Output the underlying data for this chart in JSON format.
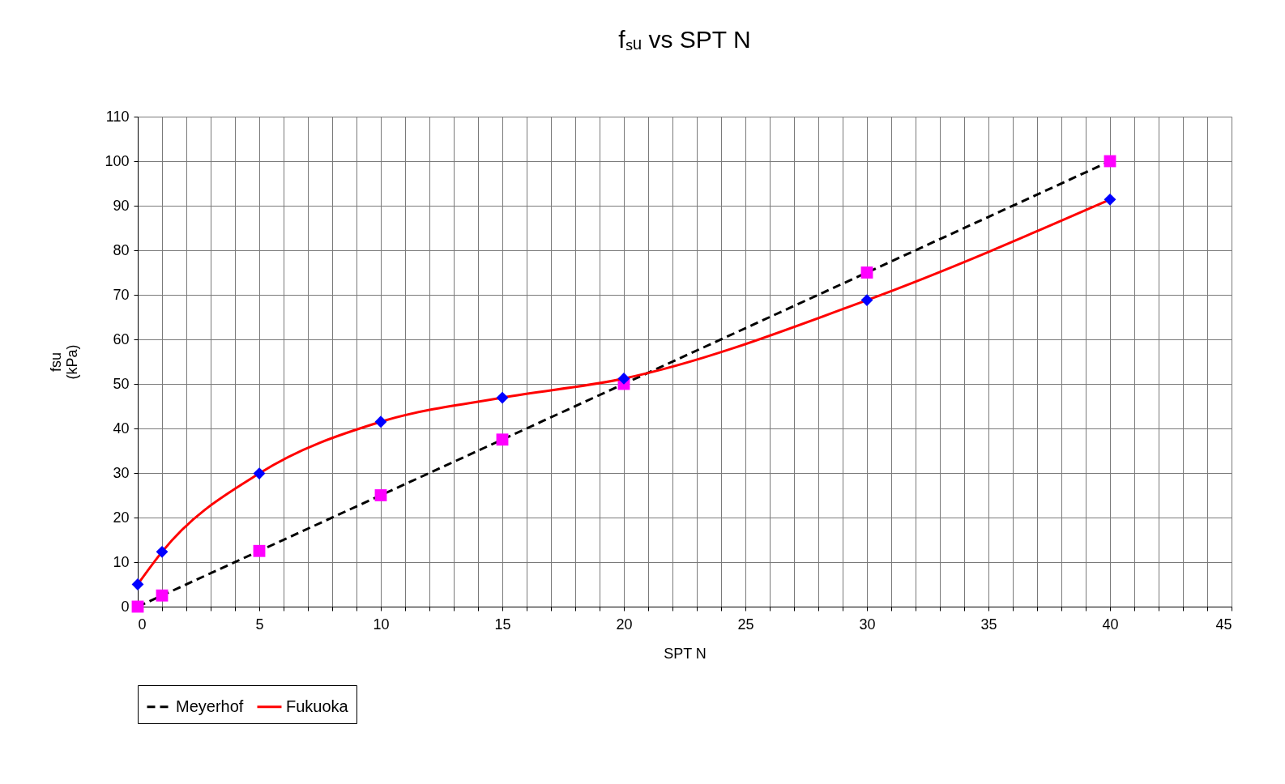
{
  "chart_data": {
    "type": "line",
    "title": "fₛᵤ vs SPT N",
    "xlabel": "SPT N",
    "ylabel": "fsu\n(kPa)",
    "x": [
      0,
      1,
      5,
      10,
      15,
      20,
      30,
      40
    ],
    "series": [
      {
        "name": "Meyerhof",
        "color": "#000000",
        "line_style": "dashed",
        "marker": "square",
        "colors": [
          "#ff00ff",
          "#ff00ff",
          "#ff00ff",
          "#ff00ff",
          "#ff00ff",
          "#ff00ff",
          "#ff00ff",
          "#ff00ff"
        ],
        "values": [
          0,
          2.5,
          12.5,
          25,
          37.5,
          50,
          75,
          100
        ]
      },
      {
        "name": "Fukuoka",
        "color": "#ff0000",
        "line_style": "solid",
        "marker": "diamond",
        "colors": [
          "#0000ff",
          "#0000ff",
          "#0000ff",
          "#0000ff",
          "#0000ff",
          "#0000ff",
          "#0000ff",
          "#0000ff"
        ],
        "values": [
          5,
          12.3,
          29.9,
          41.5,
          46.9,
          51.2,
          68.8,
          91.4
        ]
      }
    ],
    "xlim": [
      0,
      45
    ],
    "xticks": [
      0,
      {
        "value": 1,
        "label": null
      },
      {
        "value": 2,
        "label": null
      },
      {
        "value": 3,
        "label": null
      },
      {
        "value": 4,
        "label": null
      },
      5,
      {
        "value": 6,
        "label": null
      },
      {
        "value": 7,
        "label": null
      },
      {
        "value": 8,
        "label": null
      },
      {
        "value": 9,
        "label": null
      },
      10,
      {
        "value": 11,
        "label": null
      },
      {
        "value": 12,
        "label": null
      },
      {
        "value": 13,
        "label": null
      },
      {
        "value": 14,
        "label": null
      },
      15,
      {
        "value": 16,
        "label": null
      },
      {
        "value": 17,
        "label": null
      },
      {
        "value": 18,
        "label": null
      },
      {
        "value": 19,
        "label": null
      },
      20,
      {
        "value": 21,
        "label": null
      },
      {
        "value": 22,
        "label": null
      },
      {
        "value": 23,
        "label": null
      },
      {
        "value": 24,
        "label": null
      },
      25,
      {
        "value": 26,
        "label": null
      },
      {
        "value": 27,
        "label": null
      },
      {
        "value": 28,
        "label": null
      },
      {
        "value": 29,
        "label": null
      },
      30,
      {
        "value": 31,
        "label": null
      },
      {
        "value": 32,
        "label": null
      },
      {
        "value": 33,
        "label": null
      },
      {
        "value": 34,
        "label": null
      },
      35,
      {
        "value": 36,
        "label": null
      },
      {
        "value": 37,
        "label": null
      },
      {
        "value": 38,
        "label": null
      },
      {
        "value": 39,
        "label": null
      },
      40,
      {
        "value": 41,
        "label": null
      },
      {
        "value": 42,
        "label": null
      },
      {
        "value": 43,
        "label": null
      },
      {
        "value": 44,
        "label": null
      },
      45
    ],
    "ylim": [
      0,
      110
    ],
    "yticks": [
      0,
      10,
      20,
      30,
      40,
      50,
      60,
      70,
      80,
      90,
      100,
      110
    ],
    "grid": true,
    "legend": "bottom"
  }
}
